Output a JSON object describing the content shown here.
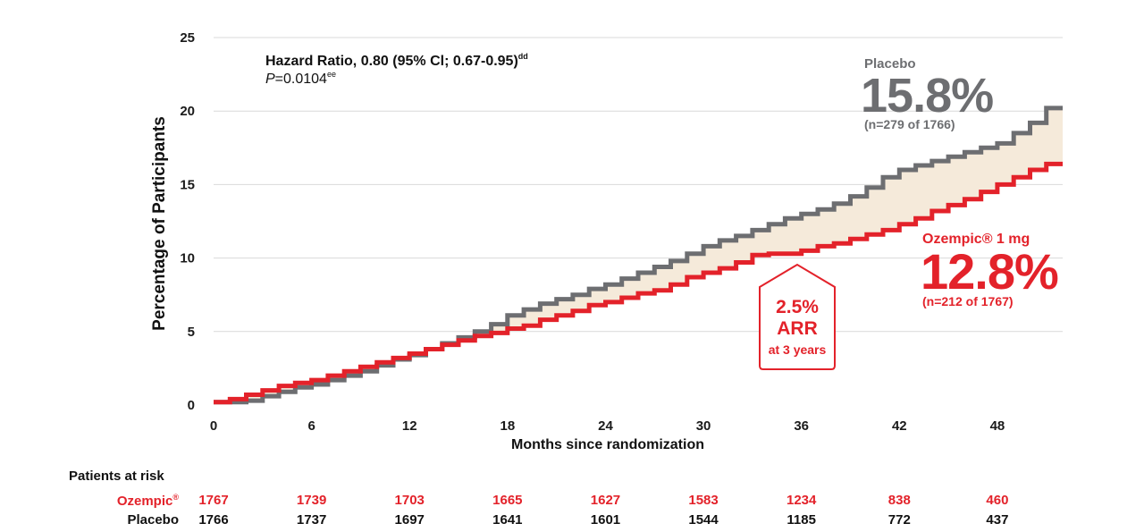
{
  "colors": {
    "placebo": "#6d6e71",
    "ozempic": "#e3222a",
    "fill": "#f5eada",
    "grid": "#d9d9d9",
    "text": "#111111"
  },
  "chart_data": {
    "type": "line",
    "xlabel": "Months since randomization",
    "ylabel": "Percentage of Participants",
    "xlim": [
      0,
      52
    ],
    "ylim": [
      0,
      25
    ],
    "xticks": [
      0,
      6,
      12,
      18,
      24,
      30,
      36,
      42,
      48
    ],
    "yticks": [
      0,
      5,
      10,
      15,
      20,
      25
    ],
    "grid": "horizontal",
    "stats": {
      "hazard_ratio": "Hazard Ratio, 0.80 (95% Cl; 0.67-0.95)",
      "hazard_ratio_sup": "dd",
      "p_letter": "P",
      "p_value": "=0.0104",
      "p_sup": "ee"
    },
    "series": [
      {
        "name": "Placebo",
        "color": "#6d6e71",
        "label_value": "15.8%",
        "label_n": "(n=279 of 1766)",
        "x": [
          0,
          2,
          3,
          4,
          5,
          6,
          7,
          8,
          9,
          10,
          11,
          12,
          13,
          14,
          15,
          16,
          17,
          18,
          19,
          20,
          21,
          22,
          23,
          24,
          25,
          26,
          27,
          28,
          29,
          30,
          31,
          32,
          33,
          34,
          35,
          36,
          37,
          38,
          39,
          40,
          41,
          42,
          43,
          44,
          45,
          46,
          47,
          48,
          49,
          50,
          51,
          52
        ],
        "y": [
          0.2,
          0.3,
          0.6,
          0.9,
          1.2,
          1.4,
          1.7,
          2.0,
          2.3,
          2.7,
          3.1,
          3.4,
          3.8,
          4.2,
          4.6,
          5.0,
          5.5,
          6.1,
          6.5,
          6.9,
          7.2,
          7.5,
          7.9,
          8.2,
          8.6,
          9.0,
          9.4,
          9.8,
          10.3,
          10.8,
          11.2,
          11.5,
          11.9,
          12.3,
          12.7,
          13.0,
          13.3,
          13.7,
          14.2,
          14.8,
          15.5,
          16.0,
          16.3,
          16.6,
          16.9,
          17.2,
          17.5,
          17.8,
          18.5,
          19.2,
          20.2,
          20.2
        ]
      },
      {
        "name": "Ozempic® 1 mg",
        "color": "#e3222a",
        "label_value": "12.8%",
        "label_n": "(n=212 of 1767)",
        "x": [
          0,
          1,
          2,
          3,
          4,
          5,
          6,
          7,
          8,
          9,
          10,
          11,
          12,
          13,
          14,
          15,
          16,
          17,
          18,
          19,
          20,
          21,
          22,
          23,
          24,
          25,
          26,
          27,
          28,
          29,
          30,
          31,
          32,
          33,
          34,
          35,
          36,
          37,
          38,
          39,
          40,
          41,
          42,
          43,
          44,
          45,
          46,
          47,
          48,
          49,
          50,
          51,
          52
        ],
        "y": [
          0.2,
          0.4,
          0.7,
          1.0,
          1.3,
          1.5,
          1.7,
          2.0,
          2.3,
          2.6,
          2.9,
          3.2,
          3.5,
          3.8,
          4.1,
          4.4,
          4.7,
          4.9,
          5.2,
          5.4,
          5.8,
          6.1,
          6.4,
          6.8,
          7.0,
          7.3,
          7.6,
          7.8,
          8.2,
          8.7,
          9.0,
          9.3,
          9.7,
          10.2,
          10.3,
          10.3,
          10.5,
          10.8,
          11.0,
          11.3,
          11.6,
          11.9,
          12.3,
          12.7,
          13.2,
          13.6,
          14.0,
          14.5,
          15.0,
          15.5,
          16.0,
          16.4,
          16.4
        ]
      }
    ],
    "annotation": {
      "value": "2.5%",
      "label": "ARR",
      "sub": "at 3 years"
    }
  },
  "at_risk": {
    "title": "Patients at risk",
    "rows": [
      {
        "label": "Ozempic",
        "label_sup": "®",
        "color": "red",
        "values": [
          "1767",
          "1739",
          "1703",
          "1665",
          "1627",
          "1583",
          "1234",
          "838",
          "460"
        ]
      },
      {
        "label": "Placebo",
        "label_sup": "",
        "color": "black",
        "values": [
          "1766",
          "1737",
          "1697",
          "1641",
          "1601",
          "1544",
          "1185",
          "772",
          "437"
        ]
      }
    ]
  }
}
